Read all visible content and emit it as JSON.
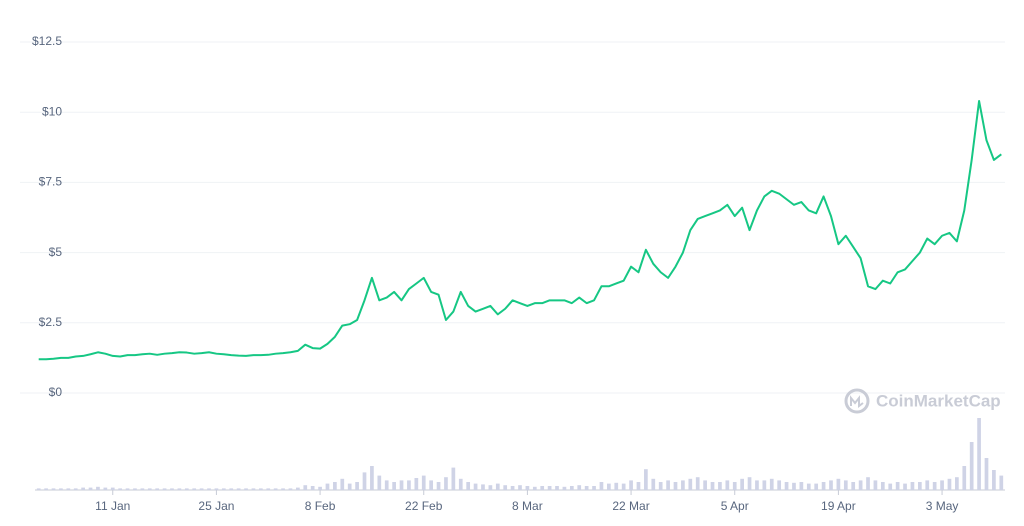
{
  "chart_data": {
    "type": "line",
    "watermark": "CoinMarketCap",
    "x": [
      1,
      2,
      3,
      4,
      5,
      6,
      7,
      8,
      9,
      10,
      11,
      12,
      13,
      14,
      15,
      16,
      17,
      18,
      19,
      20,
      21,
      22,
      23,
      24,
      25,
      26,
      27,
      28,
      29,
      30,
      31,
      32,
      33,
      34,
      35,
      36,
      37,
      38,
      39,
      40,
      41,
      42,
      43,
      44,
      45,
      46,
      47,
      48,
      49,
      50,
      51,
      52,
      53,
      54,
      55,
      56,
      57,
      58,
      59,
      60,
      61,
      62,
      63,
      64,
      65,
      66,
      67,
      68,
      69,
      70,
      71,
      72,
      73,
      74,
      75,
      76,
      77,
      78,
      79,
      80,
      81,
      82,
      83,
      84,
      85,
      86,
      87,
      88,
      89,
      90,
      91,
      92,
      93,
      94,
      95,
      96,
      97,
      98,
      99,
      100,
      101,
      102,
      103,
      104,
      105,
      106,
      107,
      108,
      109,
      110,
      111,
      112,
      113,
      114,
      115,
      116,
      117,
      118,
      119,
      120,
      121,
      122,
      123,
      124,
      125,
      126,
      127,
      128,
      129,
      130,
      131
    ],
    "series": [
      {
        "color": "#16c784",
        "values": [
          1.2,
          1.2,
          1.22,
          1.25,
          1.25,
          1.3,
          1.32,
          1.38,
          1.45,
          1.4,
          1.32,
          1.3,
          1.35,
          1.35,
          1.38,
          1.4,
          1.36,
          1.4,
          1.42,
          1.45,
          1.44,
          1.4,
          1.42,
          1.45,
          1.4,
          1.38,
          1.35,
          1.33,
          1.32,
          1.35,
          1.35,
          1.36,
          1.4,
          1.42,
          1.45,
          1.5,
          1.72,
          1.6,
          1.58,
          1.75,
          2.0,
          2.4,
          2.45,
          2.6,
          3.3,
          4.1,
          3.3,
          3.4,
          3.6,
          3.3,
          3.7,
          3.9,
          4.1,
          3.6,
          3.5,
          2.6,
          2.9,
          3.6,
          3.1,
          2.9,
          3.0,
          3.1,
          2.8,
          3.0,
          3.3,
          3.2,
          3.1,
          3.2,
          3.2,
          3.3,
          3.3,
          3.3,
          3.2,
          3.4,
          3.2,
          3.3,
          3.8,
          3.8,
          3.9,
          4.0,
          4.5,
          4.3,
          5.1,
          4.6,
          4.3,
          4.1,
          4.5,
          5.0,
          5.8,
          6.2,
          6.3,
          6.4,
          6.5,
          6.7,
          6.3,
          6.6,
          5.8,
          6.5,
          7.0,
          7.2,
          7.1,
          6.9,
          6.7,
          6.8,
          6.5,
          6.4,
          7.0,
          6.3,
          5.3,
          5.6,
          5.2,
          4.8,
          3.8,
          3.7,
          4.0,
          3.9,
          4.3,
          4.4,
          4.7,
          5.0,
          5.5,
          5.3,
          5.6,
          5.7,
          5.4,
          6.5,
          8.3,
          10.4,
          9.0,
          8.3,
          8.5
        ]
      },
      {
        "type": "bar",
        "axis": "y2",
        "color": "#cfd3e6",
        "values": [
          2,
          2,
          2,
          2,
          2,
          2,
          3,
          3,
          4,
          3,
          3,
          2,
          2,
          2,
          2,
          2,
          2,
          2,
          2,
          2,
          2,
          2,
          2,
          2,
          2,
          2,
          2,
          2,
          2,
          2,
          2,
          2,
          2,
          2,
          2,
          3,
          6,
          5,
          4,
          8,
          10,
          14,
          8,
          10,
          22,
          30,
          18,
          12,
          10,
          12,
          12,
          15,
          18,
          12,
          10,
          16,
          28,
          14,
          10,
          8,
          7,
          6,
          8,
          6,
          5,
          6,
          5,
          4,
          5,
          5,
          5,
          4,
          5,
          6,
          5,
          5,
          10,
          8,
          9,
          8,
          12,
          10,
          26,
          14,
          10,
          12,
          10,
          12,
          14,
          16,
          12,
          10,
          10,
          12,
          10,
          14,
          16,
          12,
          12,
          14,
          12,
          10,
          9,
          10,
          8,
          8,
          10,
          12,
          14,
          12,
          10,
          12,
          16,
          12,
          10,
          8,
          10,
          8,
          10,
          10,
          12,
          10,
          12,
          14,
          16,
          30,
          60,
          90,
          40,
          25,
          18
        ]
      }
    ],
    "xlim": [
      0.5,
      131.5
    ],
    "xticks": [
      {
        "value": 11,
        "label": "11 Jan"
      },
      {
        "value": 25,
        "label": "25 Jan"
      },
      {
        "value": 39,
        "label": "8 Feb"
      },
      {
        "value": 53,
        "label": "22 Feb"
      },
      {
        "value": 67,
        "label": "8 Mar"
      },
      {
        "value": 81,
        "label": "22 Mar"
      },
      {
        "value": 95,
        "label": "5 Apr"
      },
      {
        "value": 109,
        "label": "19 Apr"
      },
      {
        "value": 123,
        "label": "3 May"
      }
    ],
    "ylim": [
      0,
      12.5
    ],
    "yticks": [
      {
        "value": 0,
        "label": "$0"
      },
      {
        "value": 2.5,
        "label": "$2.5"
      },
      {
        "value": 5,
        "label": "$5"
      },
      {
        "value": 7.5,
        "label": "$7.5"
      },
      {
        "value": 10,
        "label": "$10"
      },
      {
        "value": 12.5,
        "label": "$12.5"
      }
    ],
    "y2lim": [
      0,
      100
    ],
    "grid": true
  }
}
